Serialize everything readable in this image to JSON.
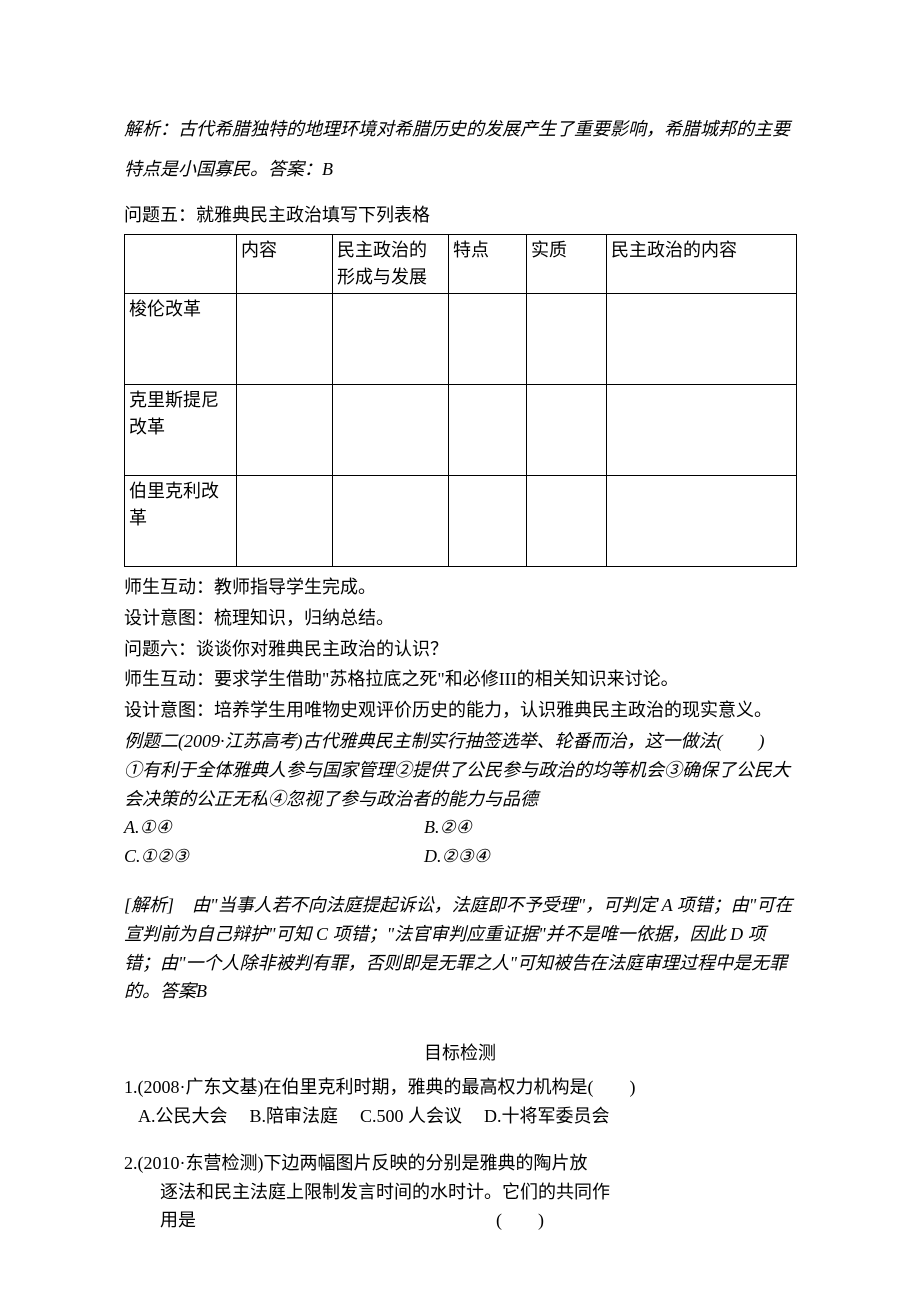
{
  "analysis1": {
    "text": "解析：古代希腊独特的地理环境对希腊历史的发展产生了重要影响，希腊城邦的主要特点是小国寡民。答案：B"
  },
  "q5": {
    "intro": "问题五：就雅典民主政治填写下列表格",
    "table": {
      "col_widths": [
        "112px",
        "96px",
        "116px",
        "78px",
        "80px",
        "190px"
      ],
      "header": [
        "",
        "内容",
        "民主政治的形成与发展",
        "特点",
        "实质",
        "民主政治的内容"
      ],
      "rows": [
        [
          "梭伦改革",
          "",
          "",
          "",
          "",
          ""
        ],
        [
          "克里斯提尼改革",
          "",
          "",
          "",
          "",
          ""
        ],
        [
          "伯里克利改革",
          "",
          "",
          "",
          "",
          ""
        ]
      ]
    },
    "after": [
      "师生互动：教师指导学生完成。",
      "设计意图：梳理知识，归纳总结。"
    ]
  },
  "q6": {
    "lines": [
      "问题六：谈谈你对雅典民主政治的认识？",
      "师生互动：要求学生借助\"苏格拉底之死\"和必修III的相关知识来讨论。",
      "设计意图：培养学生用唯物史观评价历史的能力，认识雅典民主政治的现实意义。"
    ]
  },
  "example2": {
    "lines": [
      "例题二(2009·江苏高考)古代雅典民主制实行抽签选举、轮番而治，这一做法(　　)",
      "①有利于全体雅典人参与国家管理②提供了公民参与政治的均等机会③确保了公民大会决策的公正无私④忽视了参与政治者的能力与品德"
    ],
    "options": [
      {
        "left": "A.①④",
        "right": "B.②④"
      },
      {
        "left": "C.①②③",
        "right": "D.②③④"
      }
    ]
  },
  "analysis2": {
    "text": "[解析]　由\"当事人若不向法庭提起诉讼，法庭即不予受理\"，可判定 A 项错；由\"可在宣判前为自己辩护\"可知 C 项错；\"法官审判应重证据\"并不是唯一依据，因此 D 项错；由\"一个人除非被判有罪，否则即是无罪之人\"可知被告在法庭审理过程中是无罪的。答案B"
  },
  "targets": {
    "title": "目标检测",
    "q1": {
      "stem": "1.(2008·广东文基)在伯里克利时期，雅典的最高权力机构是(　　)",
      "options": [
        "A.公民大会",
        "B.陪审法庭",
        "C.500 人会议",
        "D.十将军委员会"
      ]
    },
    "q2": {
      "line1": "2.(2010·东营检测)下边两幅图片反映的分别是雅典的陶片放",
      "line2": "逐法和民主法庭上限制发言时间的水时计。它们的共同作",
      "line3_label": "用是",
      "line3_paren": "(　　)"
    }
  }
}
